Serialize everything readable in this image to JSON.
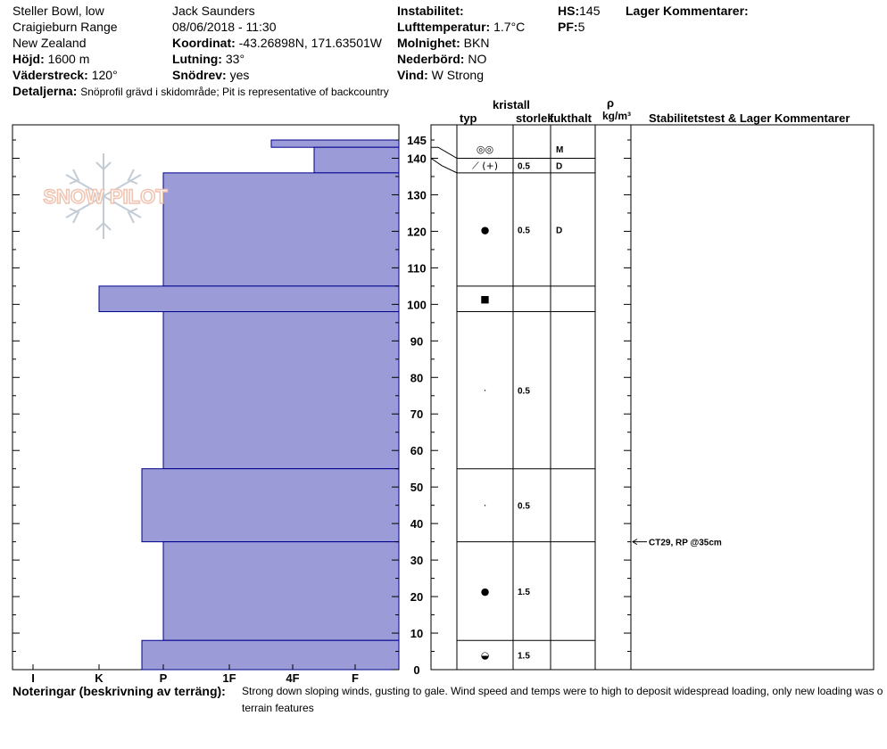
{
  "header": {
    "location_name": "Steller Bowl, low",
    "range": "Craigieburn Range",
    "country": "New Zealand",
    "elevation_label": "Höjd:",
    "elevation_value": "1600 m",
    "aspect_label": "Väderstreck:",
    "aspect_value": "120°",
    "details_label": "Detaljerna:",
    "details_value": "Snöprofil grävd i skidområde;  Pit is representative of backcountry",
    "observer": "Jack Saunders",
    "datetime": "08/06/2018 - 11:30",
    "coord_label": "Koordinat:",
    "coord_value": "-43.26898N, 171.63501W",
    "slope_label": "Lutning:",
    "slope_value": "33°",
    "snowdrift_label": "Snödrev:",
    "snowdrift_value": "yes",
    "instability_label": "Instabilitet:",
    "airtemp_label": "Lufttemperatur:",
    "airtemp_value": "1.7°C",
    "cloud_label": "Molnighet:",
    "cloud_value": "BKN",
    "precip_label": "Nederbörd:",
    "precip_value": "NO",
    "wind_label": "Vind:",
    "wind_value": "W Strong",
    "hs_label": "HS:",
    "hs_value": "145",
    "pf_label": "PF:",
    "pf_value": "5",
    "layer_comments_label": "Lager Kommentarer:"
  },
  "table_headers": {
    "crystal": "kristall",
    "type": "typ",
    "size": "storlek",
    "moisture": "fukthalt",
    "rho": "ρ",
    "density_unit": "kg/m³",
    "stability": "Stabilitetstest & Lager Kommentarer"
  },
  "notes": {
    "label": "Noteringar (beskrivning av terräng):",
    "line1": "Strong down sloping winds, gusting to gale. Wind speed and temps were to high to deposit widespread loading, only new loading was o",
    "line2": "terrain features"
  },
  "logo_text": "SNOW PILOT",
  "colors": {
    "layer_fill": "#9b9bd8",
    "layer_stroke": "#00008b",
    "logo": "#f0c3b0"
  },
  "chart_data": {
    "type": "bar",
    "hardness_scale": [
      "I",
      "K",
      "P",
      "1F",
      "4F",
      "F"
    ],
    "y_ticks": [
      0,
      10,
      20,
      30,
      40,
      50,
      60,
      70,
      80,
      90,
      100,
      110,
      120,
      130,
      140,
      145
    ],
    "ylim": [
      0,
      145
    ],
    "hardness_layers": [
      {
        "bottom": 143,
        "top": 145,
        "hardness": "4F+"
      },
      {
        "bottom": 136,
        "top": 143,
        "hardness": "4F-"
      },
      {
        "bottom": 105,
        "top": 136,
        "hardness": "P"
      },
      {
        "bottom": 98,
        "top": 105,
        "hardness": "K"
      },
      {
        "bottom": 55,
        "top": 98,
        "hardness": "P"
      },
      {
        "bottom": 35,
        "top": 55,
        "hardness": "P+"
      },
      {
        "bottom": 8,
        "top": 35,
        "hardness": "P"
      },
      {
        "bottom": 0,
        "top": 8,
        "hardness": "P+"
      }
    ],
    "crystal_rows": [
      {
        "bottom": 140,
        "top": 145,
        "type": "◎◎",
        "size": "",
        "moisture": "M"
      },
      {
        "bottom": 136,
        "top": 140,
        "type": "⟋ (+)",
        "size": "0.5",
        "moisture": "D"
      },
      {
        "bottom": 105,
        "top": 136,
        "type": "●",
        "size": "0.5",
        "moisture": "D"
      },
      {
        "bottom": 98,
        "top": 105,
        "type": "■",
        "size": "",
        "moisture": ""
      },
      {
        "bottom": 55,
        "top": 98,
        "type": "·",
        "size": "0.5",
        "moisture": ""
      },
      {
        "bottom": 35,
        "top": 55,
        "type": "·",
        "size": "0.5",
        "moisture": ""
      },
      {
        "bottom": 8,
        "top": 35,
        "type": "●",
        "size": "1.5",
        "moisture": ""
      },
      {
        "bottom": 0,
        "top": 8,
        "type": "◒",
        "size": "1.5",
        "moisture": ""
      }
    ],
    "stability_tests": [
      {
        "depth": 35,
        "text": "CT29, RP @35cm"
      }
    ]
  }
}
